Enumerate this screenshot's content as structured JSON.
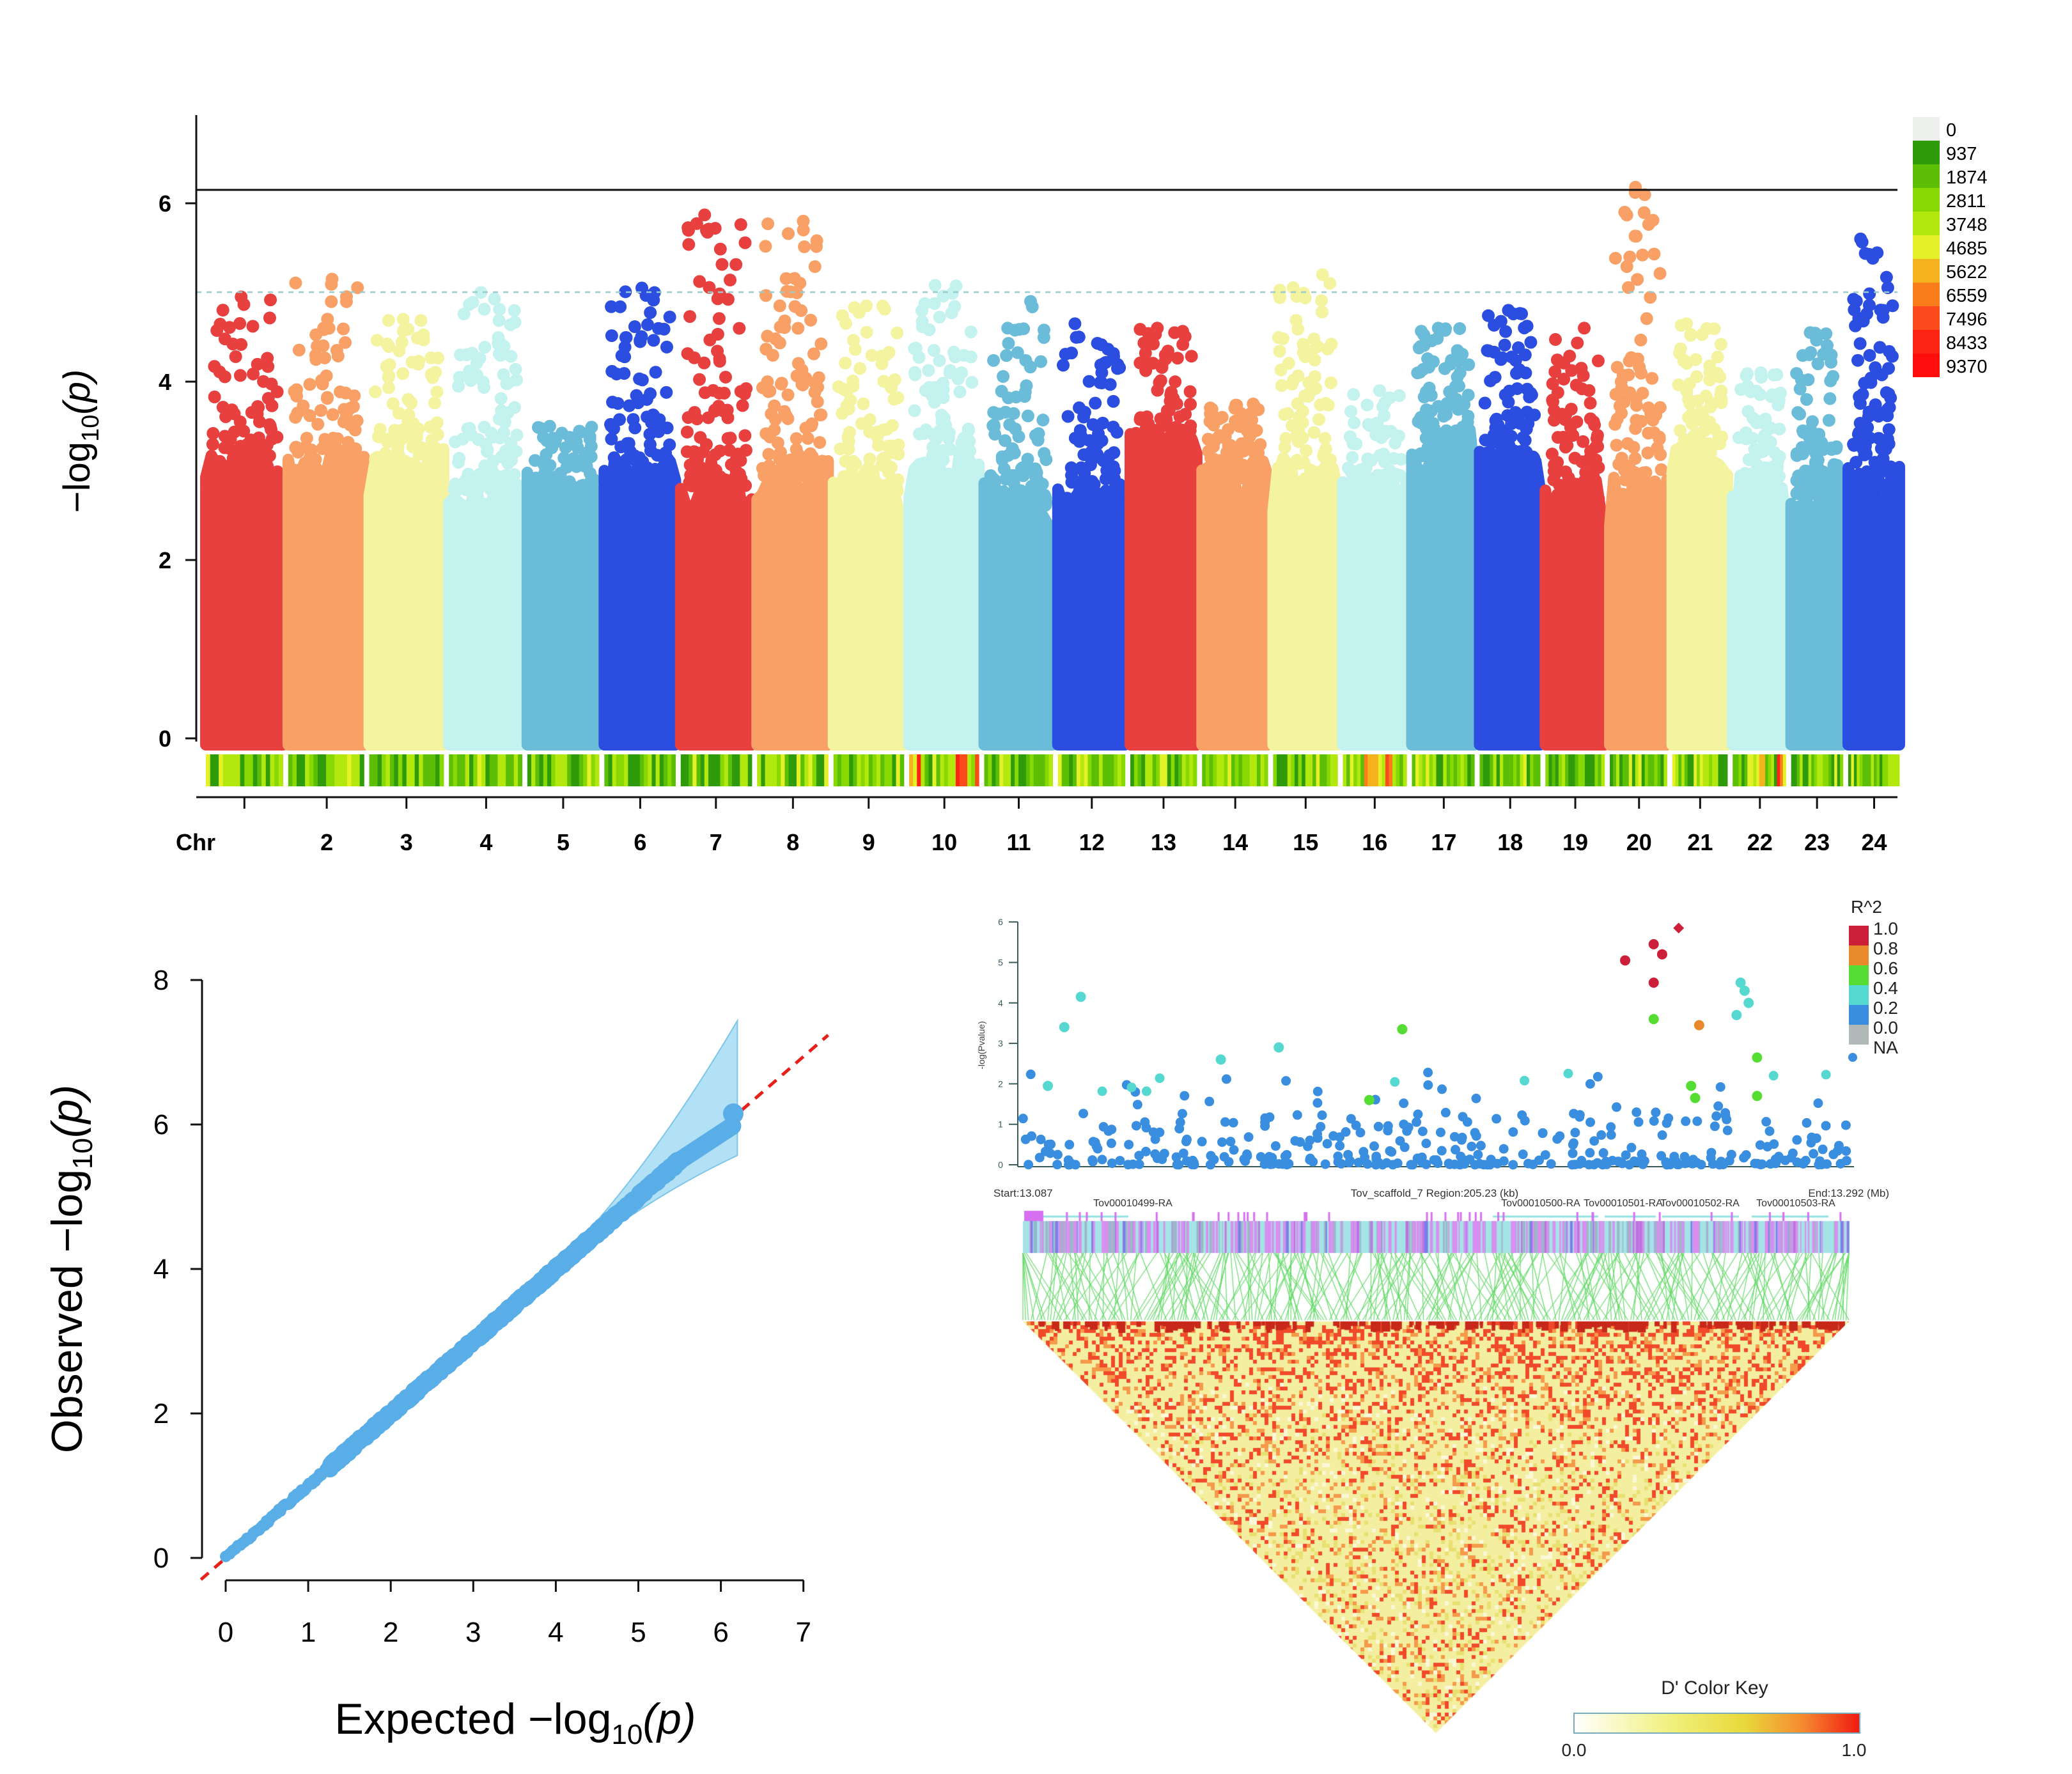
{
  "chart_data": [
    {
      "type": "scatter",
      "subtype": "manhattan",
      "ylabel": {
        "pre": "−log",
        "sub": "10",
        "post": "(p)"
      },
      "xlabel": "Chr",
      "ylim": [
        0,
        7
      ],
      "yticks": [
        "0",
        "2",
        "4",
        "6"
      ],
      "significance_line": 6.15,
      "suggestive_line": 5.0,
      "chromosomes": [
        "1",
        "2",
        "3",
        "4",
        "5",
        "6",
        "7",
        "8",
        "9",
        "10",
        "11",
        "12",
        "13",
        "14",
        "15",
        "16",
        "17",
        "18",
        "19",
        "20",
        "21",
        "22",
        "23",
        "24"
      ],
      "x_tick_labels": [
        "",
        "2",
        "3",
        "4",
        "5",
        "6",
        "7",
        "8",
        "9",
        "10",
        "11",
        "12",
        "13",
        "14",
        "15",
        "16",
        "17",
        "18",
        "19",
        "20",
        "21",
        "22",
        "23",
        "24"
      ],
      "peak_values": [
        4.95,
        5.15,
        4.7,
        5.0,
        3.5,
        5.05,
        5.87,
        5.8,
        4.85,
        5.08,
        4.9,
        4.65,
        4.6,
        3.75,
        5.2,
        3.9,
        4.6,
        4.8,
        4.6,
        6.18,
        4.65,
        4.1,
        4.55,
        5.6
      ],
      "colors": [
        "#e8403f",
        "#f9a066",
        "#f3f3a0",
        "#c4f2ee",
        "#6bbcd8",
        "#2b4de0"
      ],
      "density_legend": {
        "labels": [
          "0",
          "937",
          "1874",
          "2811",
          "3748",
          "4685",
          "5622",
          "6559",
          "7496",
          "8433",
          "9370"
        ],
        "colors": [
          "#eef0ee",
          "#2f9a0a",
          "#5cbf06",
          "#88d804",
          "#b3e80f",
          "#e4f128",
          "#f4b21e",
          "#fa7d1c",
          "#fb4a1c",
          "#fc2314",
          "#fe0d0d"
        ]
      }
    },
    {
      "type": "scatter",
      "subtype": "qq",
      "xlabel": {
        "pre": "Expected  −log",
        "sub": "10",
        "post": "(p)"
      },
      "ylabel": {
        "pre": "Observed  −log",
        "sub": "10",
        "post": "(p)"
      },
      "xlim": [
        0,
        7
      ],
      "ylim": [
        0,
        8
      ],
      "xticks": [
        "0",
        "1",
        "2",
        "3",
        "4",
        "5",
        "6",
        "7"
      ],
      "yticks": [
        "0",
        "2",
        "4",
        "6",
        "8"
      ],
      "max_expected": 6.15,
      "max_observed": 6.15,
      "point_color": "#5aaee8",
      "band_color": "#9fd8f2",
      "line_color": "#e8201a"
    },
    {
      "type": "scatter",
      "subtype": "regional-ld",
      "ylabel": "-log(Pvalue)",
      "ylim": [
        0,
        6
      ],
      "yticks": [
        "0",
        "1",
        "2",
        "3",
        "4",
        "5",
        "6"
      ],
      "xlim_mb": [
        13.087,
        13.292
      ],
      "start_label": "Start:13.087",
      "region_label": "Tov_scaffold_7 Region:205.23 (kb)",
      "end_label": "End:13.292 (Mb)",
      "genes": [
        "Tov00010499-RA",
        "Tov00010500-RA",
        "Tov00010501-RA",
        "Tov00010502-RA",
        "Tov00010503-RA"
      ],
      "r2_legend": {
        "title": "R^2",
        "labels": [
          "1.0",
          "0.8",
          "0.6",
          "0.4",
          "0.2",
          "0.0",
          "NA"
        ],
        "colors": [
          "#cc1f3a",
          "#e88a2c",
          "#55dd33",
          "#55d8d0",
          "#3a8ee0",
          "#b0b8b8"
        ]
      },
      "highlight_points": [
        {
          "x": 13.2367,
          "y": 5.05,
          "r2": "1.0"
        },
        {
          "x": 13.2438,
          "y": 5.45,
          "r2": "1.0"
        },
        {
          "x": 13.2459,
          "y": 5.2,
          "r2": "1.0"
        },
        {
          "x": 13.2438,
          "y": 4.5,
          "r2": "1.0"
        },
        {
          "x": 13.25,
          "y": 5.85,
          "r2": "1.0"
        },
        {
          "x": 13.2551,
          "y": 3.45,
          "r2": "0.8"
        },
        {
          "x": 13.1813,
          "y": 3.35,
          "r2": "0.6"
        },
        {
          "x": 13.2438,
          "y": 3.6,
          "r2": "0.6"
        },
        {
          "x": 13.2531,
          "y": 1.95,
          "r2": "0.6"
        },
        {
          "x": 13.2541,
          "y": 1.65,
          "r2": "0.6"
        },
        {
          "x": 13.2695,
          "y": 1.7,
          "r2": "0.6"
        },
        {
          "x": 13.2695,
          "y": 2.65,
          "r2": "0.6"
        },
        {
          "x": 13.1731,
          "y": 1.6,
          "r2": "0.6"
        },
        {
          "x": 13.1014,
          "y": 4.15,
          "r2": "0.4"
        },
        {
          "x": 13.0973,
          "y": 3.4,
          "r2": "0.4"
        },
        {
          "x": 13.0932,
          "y": 1.95,
          "r2": "0.4"
        },
        {
          "x": 13.1362,
          "y": 2.6,
          "r2": "0.4"
        },
        {
          "x": 13.1506,
          "y": 2.9,
          "r2": "0.4"
        },
        {
          "x": 13.2654,
          "y": 4.5,
          "r2": "0.4"
        },
        {
          "x": 13.2664,
          "y": 4.3,
          "r2": "0.4"
        },
        {
          "x": 13.2674,
          "y": 4.0,
          "r2": "0.4"
        },
        {
          "x": 13.2644,
          "y": 3.7,
          "r2": "0.4"
        }
      ],
      "dprime_key": {
        "title": "D' Color Key",
        "min_label": "0.0",
        "max_label": "1.0"
      }
    }
  ]
}
